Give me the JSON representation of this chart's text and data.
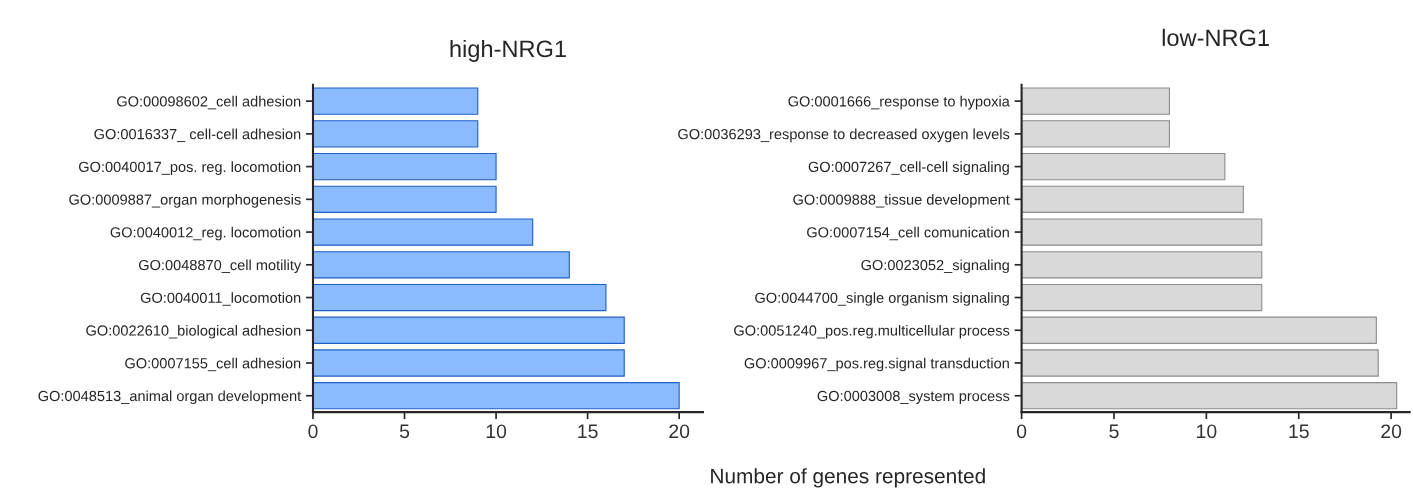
{
  "chart_data": [
    {
      "type": "bar",
      "orientation": "horizontal",
      "title": "high-NRG1",
      "xlabel": "Number of genes represented",
      "categories": [
        "GO:00098602_cell adhesion",
        "GO:0016337_ cell-cell adhesion",
        "GO:0040017_pos. reg. locomotion",
        "GO:0009887_organ morphogenesis",
        "GO:0040012_reg. locomotion",
        "GO:0048870_cell motility",
        "GO:0040011_locomotion",
        "GO:0022610_biological adhesion",
        "GO:0007155_cell adhesion",
        "GO:0048513_animal organ development"
      ],
      "series": [
        {
          "color": "#8abbff",
          "values": [
            9,
            9,
            10,
            10,
            12,
            14,
            16,
            17,
            17,
            20
          ]
        }
      ],
      "xlim": [
        0,
        21.3
      ],
      "xticks": [
        0,
        5,
        10,
        15,
        20
      ],
      "grid": false,
      "legend": false
    },
    {
      "type": "bar",
      "orientation": "horizontal",
      "title": "low-NRG1",
      "categories": [
        "GO:0001666_response to hypoxia",
        "GO:0036293_response to decreased oxygen levels",
        "GO:0007267_cell-cell signaling",
        "GO:0009888_tissue development",
        "GO:0007154_cell comunication",
        "GO:0023052_signaling",
        "GO:0044700_single organism signaling",
        "GO:0051240_pos.reg.multicellular process",
        "GO:0009967_pos.reg.signal transduction",
        "GO:0003008_system process"
      ],
      "series": [
        {
          "color": "#d9d9d9",
          "values": [
            8,
            8,
            11,
            12,
            13,
            13,
            13,
            19.2,
            19.3,
            20.3
          ]
        }
      ],
      "xlim": [
        0,
        21
      ],
      "xticks": [
        0,
        5,
        10,
        15,
        20
      ],
      "grid": false,
      "legend": false
    }
  ]
}
